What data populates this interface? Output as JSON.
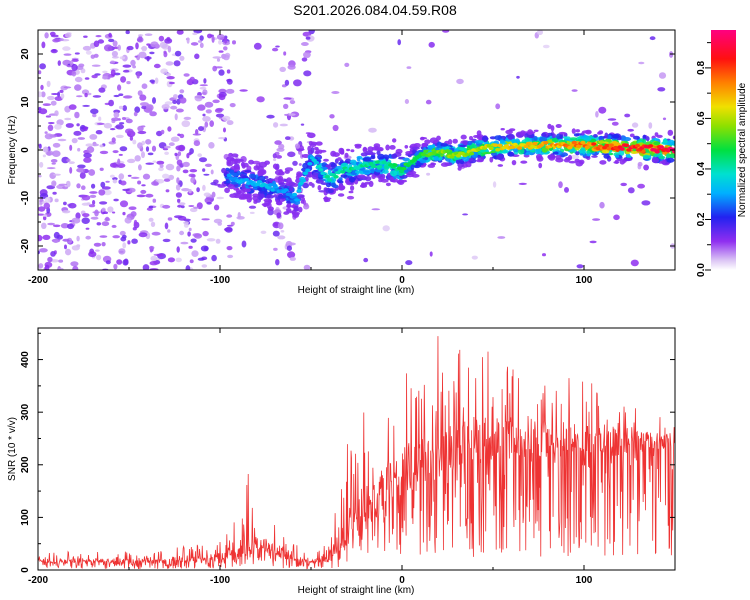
{
  "title": "S201.2026.084.04.59.R08",
  "chart_data": [
    {
      "type": "heatmap",
      "xlabel": "Height of straight line (km)",
      "ylabel": "Frequency (Hz)",
      "xlim": [
        -200,
        150
      ],
      "ylim": [
        -25,
        25
      ],
      "x_ticks": [
        -200,
        -100,
        0,
        100
      ],
      "y_ticks": [
        -20,
        -10,
        0,
        10,
        20
      ],
      "colorbar": {
        "label": "Normalized spectral amplitude",
        "range": [
          0,
          0.95
        ],
        "ticks": [
          0.0,
          0.2,
          0.4,
          0.6,
          0.8
        ]
      },
      "ridge": {
        "x": [
          -95,
          -85,
          -75,
          -65,
          -58,
          -50,
          -45,
          -40,
          -30,
          -20,
          -10,
          0,
          10,
          20,
          30,
          40,
          60,
          80,
          100,
          120,
          140,
          150
        ],
        "y": [
          -5.5,
          -6.5,
          -7.5,
          -8.5,
          -10,
          -2,
          -4,
          -6,
          -4,
          -3,
          -3,
          -4,
          -1,
          -0.5,
          -1,
          0,
          1,
          1,
          1,
          0.5,
          0.2,
          0
        ],
        "peak_amplitude": [
          0.3,
          0.35,
          0.35,
          0.3,
          0.35,
          0.35,
          0.4,
          0.45,
          0.45,
          0.45,
          0.45,
          0.5,
          0.55,
          0.6,
          0.6,
          0.65,
          0.7,
          0.75,
          0.8,
          0.9,
          0.95,
          0.95
        ]
      }
    },
    {
      "type": "line",
      "xlabel": "Height of straight line (km)",
      "ylabel": "SNR (10 * v/v)",
      "xlim": [
        -200,
        150
      ],
      "ylim": [
        0,
        460
      ],
      "x_ticks": [
        -200,
        -100,
        0,
        100
      ],
      "y_ticks": [
        0,
        100,
        200,
        300,
        400
      ],
      "color": "#ee3333",
      "series": [
        {
          "name": "SNR",
          "x": [
            -200,
            -190,
            -180,
            -170,
            -160,
            -150,
            -140,
            -130,
            -120,
            -110,
            -100,
            -95,
            -90,
            -85,
            -80,
            -75,
            -70,
            -65,
            -60,
            -55,
            -50,
            -45,
            -40,
            -35,
            -30,
            -25,
            -20,
            -15,
            -10,
            -5,
            0,
            5,
            10,
            15,
            20,
            25,
            30,
            40,
            50,
            60,
            70,
            80,
            90,
            100,
            110,
            120,
            130,
            140,
            150
          ],
          "base": [
            18,
            18,
            18,
            18,
            18,
            18,
            18,
            19,
            20,
            22,
            25,
            30,
            40,
            45,
            48,
            45,
            40,
            32,
            25,
            20,
            15,
            18,
            30,
            55,
            80,
            100,
            120,
            140,
            160,
            175,
            185,
            195,
            205,
            215,
            225,
            235,
            240,
            245,
            250,
            250,
            250,
            250,
            250,
            248,
            248,
            245,
            245,
            245,
            245
          ],
          "max": [
            35,
            35,
            35,
            35,
            35,
            35,
            35,
            40,
            45,
            50,
            60,
            80,
            150,
            200,
            120,
            110,
            90,
            70,
            55,
            40,
            25,
            40,
            90,
            160,
            250,
            270,
            310,
            330,
            300,
            350,
            360,
            410,
            420,
            390,
            450,
            440,
            430,
            430,
            420,
            410,
            400,
            390,
            380,
            370,
            350,
            330,
            320,
            310,
            300
          ]
        }
      ]
    }
  ]
}
